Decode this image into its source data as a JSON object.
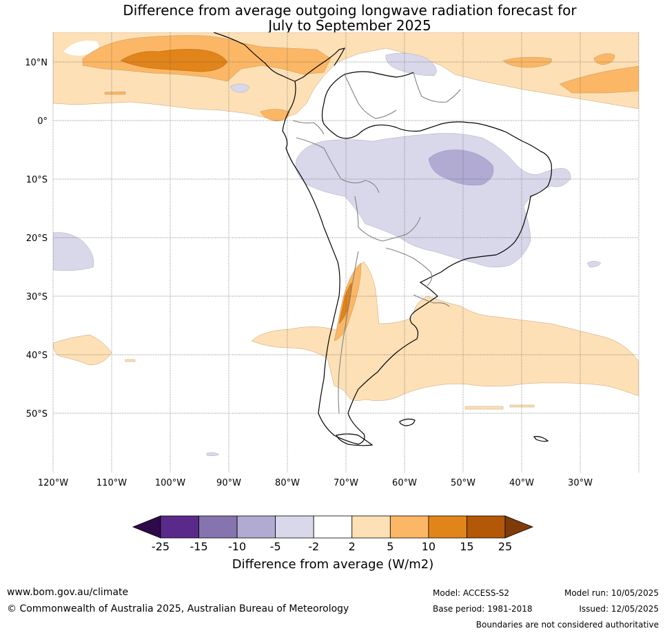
{
  "title": {
    "line1": "Difference from average outgoing longwave radiation forecast for",
    "line2": "July to September 2025"
  },
  "map": {
    "lat_labels": [
      "10°N",
      "0°",
      "10°S",
      "20°S",
      "30°S",
      "40°S",
      "50°S"
    ],
    "lon_labels": [
      "120°W",
      "110°W",
      "100°W",
      "90°W",
      "80°W",
      "70°W",
      "60°W",
      "50°W",
      "40°W",
      "30°W"
    ],
    "fill_colors": {
      "weak_negative": "#d8d8ea",
      "moderate_negative": "#b1aad3",
      "weak_positive": "#fde0b6",
      "moderate_positive": "#fbb765",
      "strong_positive": "#e1841a"
    }
  },
  "colorbar": {
    "tick_labels": [
      "-25",
      "-15",
      "-10",
      "-5",
      "-2",
      "2",
      "5",
      "10",
      "15",
      "25"
    ],
    "colors": [
      "#2f0a4a",
      "#5a2a8a",
      "#8574ad",
      "#b1aad3",
      "#d8d8ea",
      "#ffffff",
      "#fde0b6",
      "#fbb765",
      "#e1841a",
      "#b35806",
      "#7f3b08"
    ],
    "label": "Difference from average (W/m2)"
  },
  "footer": {
    "website": "www.bom.gov.au/climate",
    "copyright": "© Commonwealth of Australia 2025, Australian Bureau of Meteorology",
    "model": "Model: ACCESS-S2",
    "base_period": "Base period: 1981-2018",
    "model_run": "Model run: 10/05/2025",
    "issued": "Issued: 12/05/2025",
    "disclaimer": "Boundaries are not considered authoritative"
  }
}
